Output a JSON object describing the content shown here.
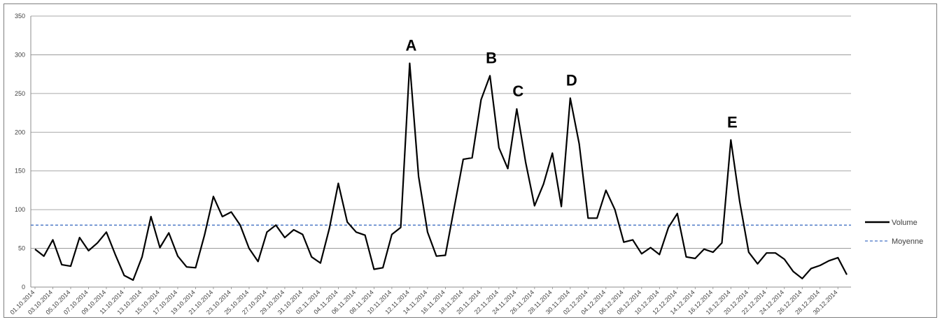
{
  "chart_data": {
    "type": "line",
    "ylim": [
      0,
      350
    ],
    "yticks": [
      "0",
      "50",
      "100",
      "150",
      "200",
      "250",
      "300",
      "350"
    ],
    "grid": "horizontal",
    "legend_position": "right",
    "x_tick_labels": [
      "01.10.2014",
      "03.10.2014",
      "05.10.2014",
      "07.10.2014",
      "09.10.2014",
      "11.10.2014",
      "13.10.2014",
      "15.10.2014",
      "17.10.2014",
      "19.10.2014",
      "21.10.2014",
      "23.10.2014",
      "25.10.2014",
      "27.10.2014",
      "29.10.2014",
      "31.10.2014",
      "02.11.2014",
      "04.11.2014",
      "06.11.2014",
      "08.11.2014",
      "10.11.2014",
      "12.11.2014",
      "14.11.2014",
      "16.11.2014",
      "18.11.2014",
      "20.11.2014",
      "22.11.2014",
      "24.11.2014",
      "26.11.2014",
      "28.11.2014",
      "30.11.2014",
      "02.12.2014",
      "04.12.2014",
      "06.12.2014",
      "08.12.2014",
      "10.12.2014",
      "12.12.2014",
      "14.12.2014",
      "16.12.2014",
      "18.12.2014",
      "20.12.2014",
      "22.12.2014",
      "24.12.2014",
      "26.12.2014",
      "28.12.2014",
      "30.12.2014"
    ],
    "series": [
      {
        "name": "Volume",
        "color": "#000000",
        "style": "solid",
        "values": [
          49,
          40,
          61,
          29,
          27,
          64,
          47,
          57,
          71,
          42,
          15,
          9,
          39,
          91,
          51,
          70,
          40,
          26,
          25,
          67,
          117,
          91,
          97,
          80,
          50,
          33,
          71,
          80,
          64,
          74,
          68,
          39,
          31,
          76,
          134,
          84,
          71,
          67,
          23,
          25,
          68,
          77,
          289,
          143,
          71,
          40,
          41,
          103,
          165,
          167,
          242,
          273,
          180,
          153,
          230,
          161,
          105,
          133,
          173,
          104,
          244,
          185,
          89,
          89,
          125,
          100,
          58,
          61,
          43,
          51,
          42,
          77,
          95,
          39,
          37,
          49,
          45,
          57,
          190,
          110,
          45,
          30,
          44,
          44,
          36,
          20,
          11,
          24,
          28,
          34,
          38,
          16
        ]
      },
      {
        "name": "Moyenne",
        "color": "#4472c4",
        "style": "dashed",
        "values": [
          80
        ]
      }
    ],
    "annotations": [
      {
        "text": "A",
        "index": 42,
        "value": 289
      },
      {
        "text": "B",
        "index": 51,
        "value": 273
      },
      {
        "text": "C",
        "index": 54,
        "value": 230
      },
      {
        "text": "D",
        "index": 60,
        "value": 244
      },
      {
        "text": "E",
        "index": 78,
        "value": 190
      }
    ]
  }
}
